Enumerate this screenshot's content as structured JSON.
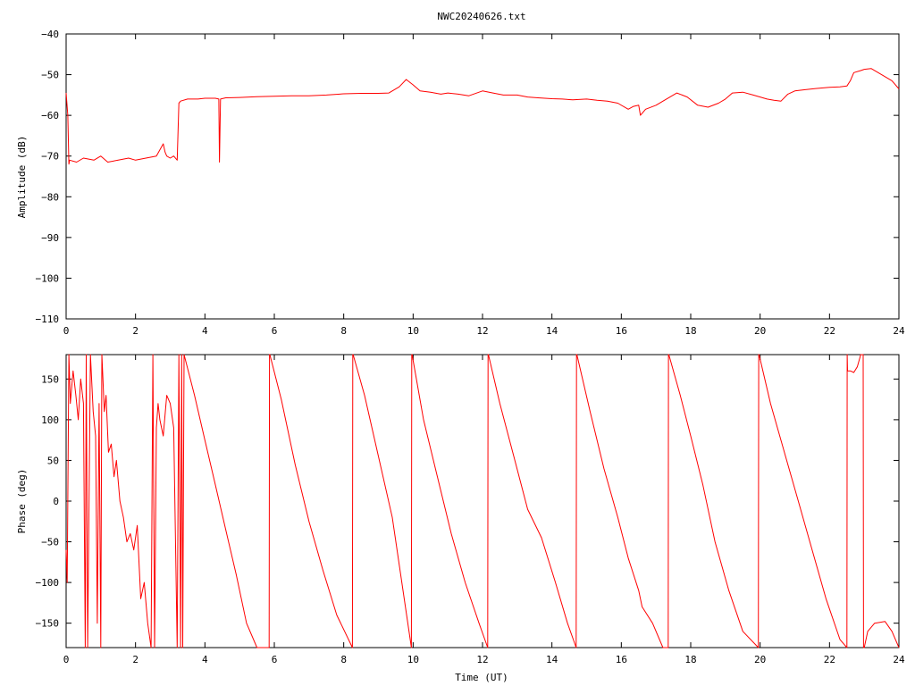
{
  "figure_title": "NWC20240626.txt",
  "chart_data": [
    {
      "type": "line",
      "id": "amplitude",
      "title": "NWC20240626.txt",
      "xlabel": "",
      "ylabel": "Amplitude (dB)",
      "xlim": [
        0,
        24
      ],
      "ylim": [
        -110,
        -40
      ],
      "xticks": [
        0,
        2,
        4,
        6,
        8,
        10,
        12,
        14,
        16,
        18,
        20,
        22,
        24
      ],
      "yticks": [
        -110,
        -100,
        -90,
        -80,
        -70,
        -60,
        -50,
        -40
      ],
      "grid": false,
      "color": "#ff0000",
      "series": [
        {
          "x": [
            0,
            0.05,
            0.08,
            0.1,
            0.3,
            0.5,
            0.8,
            1.0,
            1.2,
            1.5,
            1.8,
            2.0,
            2.3,
            2.6,
            2.8,
            2.85,
            2.9,
            3.0,
            3.1,
            3.2,
            3.25,
            3.3,
            3.5,
            3.8,
            4.0,
            4.3,
            4.4,
            4.42,
            4.45,
            4.6,
            5.0,
            5.5,
            6.0,
            6.5,
            7.0,
            7.5,
            8.0,
            8.5,
            9.0,
            9.3,
            9.6,
            9.8,
            10.0,
            10.2,
            10.5,
            10.8,
            11.0,
            11.3,
            11.6,
            12.0,
            12.3,
            12.6,
            13.0,
            13.3,
            13.6,
            14.0,
            14.3,
            14.6,
            15.0,
            15.3,
            15.6,
            15.9,
            16.2,
            16.35,
            16.5,
            16.55,
            16.7,
            17.0,
            17.3,
            17.6,
            17.9,
            18.2,
            18.5,
            18.8,
            19.0,
            19.2,
            19.5,
            19.8,
            20.0,
            20.2,
            20.4,
            20.6,
            20.8,
            21.0,
            21.3,
            21.6,
            22.0,
            22.3,
            22.5,
            22.6,
            22.7,
            22.9,
            23.0,
            23.2,
            23.5,
            23.8,
            24.0
          ],
          "y": [
            -54.5,
            -60,
            -72,
            -71,
            -71.5,
            -70.5,
            -71,
            -70,
            -71.5,
            -71,
            -70.5,
            -71,
            -70.5,
            -70,
            -67,
            -69,
            -70,
            -70.5,
            -70,
            -71,
            -57,
            -56.5,
            -56,
            -56,
            -55.8,
            -55.8,
            -56,
            -71.5,
            -56,
            -55.7,
            -55.6,
            -55.4,
            -55.3,
            -55.2,
            -55.2,
            -55,
            -54.7,
            -54.6,
            -54.6,
            -54.5,
            -53,
            -51.2,
            -52.5,
            -54,
            -54.3,
            -54.8,
            -54.5,
            -54.8,
            -55.2,
            -54,
            -54.5,
            -55,
            -55,
            -55.5,
            -55.7,
            -55.9,
            -56,
            -56.2,
            -56,
            -56.3,
            -56.5,
            -57,
            -58.5,
            -57.8,
            -57.5,
            -60,
            -58.5,
            -57.5,
            -56,
            -54.5,
            -55.5,
            -57.5,
            -58,
            -57,
            -56,
            -54.5,
            -54.3,
            -55,
            -55.5,
            -56,
            -56.3,
            -56.5,
            -54.8,
            -54,
            -53.7,
            -53.4,
            -53.1,
            -53,
            -52.8,
            -51.5,
            -49.5,
            -49,
            -48.7,
            -48.5,
            -50,
            -51.5,
            -53.5
          ]
        }
      ]
    },
    {
      "type": "line",
      "id": "phase",
      "title": "",
      "xlabel": "Time (UT)",
      "ylabel": "Phase (deg)",
      "xlim": [
        0,
        24
      ],
      "ylim": [
        -180,
        180
      ],
      "xticks": [
        0,
        2,
        4,
        6,
        8,
        10,
        12,
        14,
        16,
        18,
        20,
        22,
        24
      ],
      "yticks": [
        -150,
        -100,
        -50,
        0,
        50,
        100,
        150
      ],
      "grid": false,
      "color": "#ff0000",
      "series": [
        {
          "x": [
            0,
            0.03,
            0.08,
            0.12,
            0.2,
            0.28,
            0.35,
            0.42,
            0.5,
            0.55,
            0.58,
            0.62,
            0.7,
            0.78,
            0.85,
            0.9,
            0.95,
            1.0,
            1.03,
            1.06,
            1.1,
            1.15,
            1.22,
            1.3,
            1.38,
            1.45,
            1.55,
            1.65,
            1.75,
            1.85,
            1.95,
            2.05,
            2.15,
            2.25,
            2.35,
            2.45,
            2.5,
            2.55,
            2.6,
            2.65,
            2.7,
            2.8,
            2.9,
            3.0,
            3.1,
            3.2,
            3.25,
            3.3,
            3.33,
            3.36,
            3.4,
            3.7,
            4.0,
            4.3,
            4.6,
            4.9,
            5.2,
            5.5,
            5.85,
            5.86,
            5.87,
            6.2,
            6.6,
            7.0,
            7.4,
            7.8,
            8.25,
            8.26,
            8.27,
            8.6,
            9.0,
            9.4,
            9.95,
            9.96,
            9.97,
            10.3,
            10.7,
            11.1,
            11.5,
            11.9,
            12.15,
            12.16,
            12.17,
            12.5,
            12.9,
            13.3,
            13.7,
            14.1,
            14.45,
            14.7,
            14.71,
            14.72,
            15.1,
            15.5,
            15.9,
            16.2,
            16.5,
            16.6,
            16.9,
            17.2,
            17.35,
            17.36,
            17.37,
            17.7,
            18.0,
            18.35,
            18.7,
            19.1,
            19.5,
            19.95,
            19.96,
            19.97,
            20.3,
            20.7,
            21.1,
            21.5,
            21.9,
            22.3,
            22.5,
            22.51,
            22.52,
            22.6,
            22.7,
            22.8,
            22.9,
            22.97,
            22.98,
            23.0,
            23.1,
            23.3,
            23.6,
            23.8,
            24.0
          ],
          "y": [
            -60,
            -100,
            180,
            120,
            160,
            130,
            100,
            150,
            120,
            -180,
            180,
            -180,
            180,
            110,
            80,
            -150,
            120,
            -180,
            180,
            150,
            110,
            130,
            60,
            70,
            30,
            50,
            0,
            -20,
            -50,
            -40,
            -60,
            -30,
            -120,
            -100,
            -150,
            -180,
            180,
            -180,
            90,
            120,
            100,
            80,
            130,
            120,
            90,
            -180,
            180,
            -180,
            180,
            -180,
            180,
            130,
            75,
            20,
            -35,
            -90,
            -150,
            -180,
            -180,
            180,
            180,
            125,
            45,
            -25,
            -85,
            -140,
            -180,
            180,
            180,
            130,
            55,
            -20,
            -180,
            180,
            180,
            100,
            30,
            -40,
            -100,
            -150,
            -180,
            180,
            180,
            120,
            55,
            -10,
            -45,
            -100,
            -150,
            -180,
            180,
            180,
            110,
            40,
            -20,
            -70,
            -110,
            -130,
            -150,
            -180,
            -180,
            180,
            180,
            130,
            80,
            20,
            -50,
            -110,
            -160,
            -180,
            180,
            180,
            120,
            60,
            0,
            -60,
            -120,
            -170,
            -180,
            180,
            160,
            160,
            158,
            165,
            180,
            180,
            -180,
            -180,
            -160,
            -150,
            -148,
            -160,
            -180
          ]
        }
      ]
    }
  ]
}
